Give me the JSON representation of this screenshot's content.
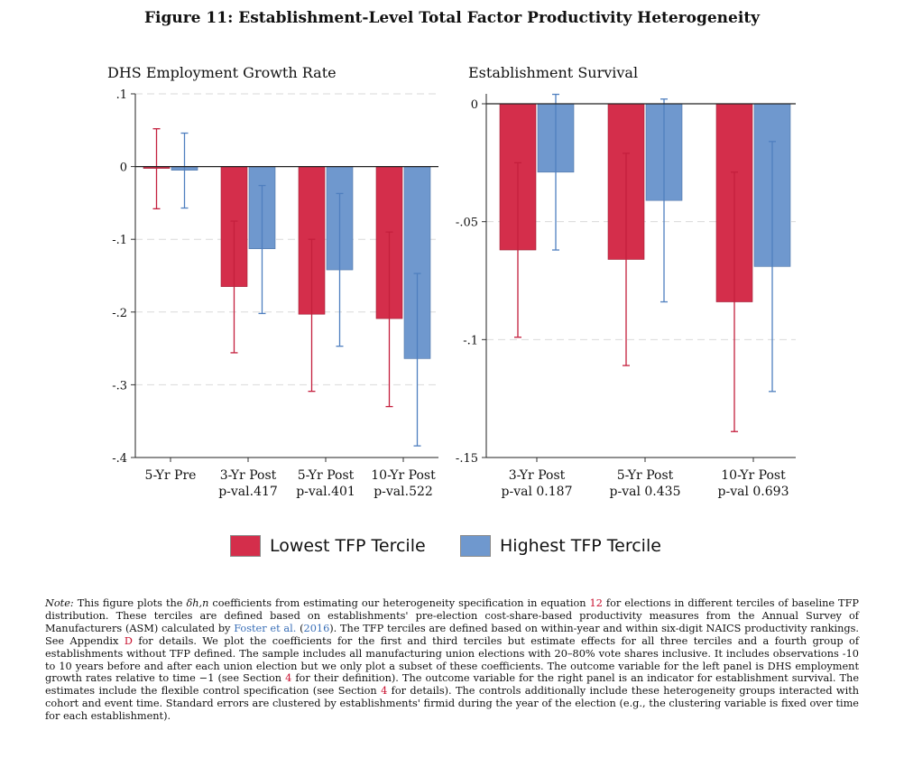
{
  "figure_title": "Figure 11: Establishment-Level Total Factor Productivity Heterogeneity",
  "colors": {
    "lowest": "#d42e4b",
    "highest": "#6f98ce",
    "lowest_err": "#c41f3d",
    "highest_err": "#4f7fbf",
    "grid": "#d9d9d9"
  },
  "legend": {
    "lowest": "Lowest TFP Tercile",
    "highest": "Highest TFP Tercile"
  },
  "chart_data": [
    {
      "type": "bar",
      "title": "DHS Employment Growth Rate",
      "categories": [
        "5-Yr Pre",
        "3-Yr Post",
        "5-Yr Post",
        "10-Yr Post"
      ],
      "sublabels": [
        "",
        "p-val.417",
        "p-val.401",
        "p-val.522"
      ],
      "yticks": [
        0.1,
        0,
        -0.1,
        -0.2,
        -0.3,
        -0.4
      ],
      "ytick_labels": [
        ".1",
        "0",
        "-.1",
        "-.2",
        "-.3",
        "-.4"
      ],
      "ylim": [
        -0.4,
        0.1
      ],
      "grid": true,
      "series": [
        {
          "name": "Lowest TFP Tercile",
          "values": [
            -0.002,
            -0.165,
            -0.203,
            -0.209
          ],
          "ci_low": [
            -0.058,
            -0.256,
            -0.309,
            -0.33
          ],
          "ci_high": [
            0.052,
            -0.075,
            -0.1,
            -0.09
          ]
        },
        {
          "name": "Highest TFP Tercile",
          "values": [
            -0.005,
            -0.113,
            -0.142,
            -0.264
          ],
          "ci_low": [
            -0.057,
            -0.202,
            -0.247,
            -0.384
          ],
          "ci_high": [
            0.046,
            -0.026,
            -0.037,
            -0.147
          ]
        }
      ]
    },
    {
      "type": "bar",
      "title": "Establishment Survival",
      "categories": [
        "3-Yr Post",
        "5-Yr Post",
        "10-Yr Post"
      ],
      "sublabels": [
        "p-val  0.187",
        "p-val  0.435",
        "p-val  0.693"
      ],
      "yticks": [
        0,
        -0.05,
        -0.1,
        -0.15
      ],
      "ytick_labels": [
        "0",
        "-.05",
        "-.1",
        "-.15"
      ],
      "ylim": [
        -0.15,
        0.004
      ],
      "grid": true,
      "series": [
        {
          "name": "Lowest TFP Tercile",
          "values": [
            -0.062,
            -0.066,
            -0.084
          ],
          "ci_low": [
            -0.099,
            -0.111,
            -0.139
          ],
          "ci_high": [
            -0.025,
            -0.021,
            -0.029
          ]
        },
        {
          "name": "Highest TFP Tercile",
          "values": [
            -0.029,
            -0.041,
            -0.069
          ],
          "ci_low": [
            -0.062,
            -0.084,
            -0.122
          ],
          "ci_high": [
            0.004,
            0.002,
            -0.016
          ]
        }
      ]
    }
  ],
  "note": {
    "label": "Note:",
    "p1": "This figure plots the",
    "symbol": "δh,n",
    "p2": "coefficients from estimating our heterogeneity specification in equation",
    "eq_ref": "12",
    "p3": "for elections in different terciles of baseline TFP distribution. These terciles are defined based on establishments' pre-election cost-share-based productivity measures from the Annual Survey of Manufacturers (ASM) calculated by",
    "cite1": "Foster et al.",
    "p4": "(",
    "cite_year": "2016",
    "p5": "). The TFP terciles are defined based on within-year and within six-digit NAICS productivity rankings. See Appendix",
    "app_ref": "D",
    "p6": "for details. We plot the coefficients for the first and third terciles but estimate effects for all three terciles and a fourth group of establishments without TFP defined. The sample includes all manufacturing union elections with 20–80% vote shares inclusive. It includes observations -10 to 10 years before and after each union election but we only plot a subset of these coefficients. The outcome variable for the left panel is DHS employment growth rates relative to time −1 (see Section",
    "sec_ref1": "4",
    "p7": "for their definition). The outcome variable for the right panel is an indicator for establishment survival. The estimates include the flexible control specification (see Section",
    "sec_ref2": "4",
    "p8": "for details). The controls additionally include these heterogeneity groups interacted with cohort and event time. Standard errors are clustered by establishments' firmid during the year of the election (e.g., the clustering variable is fixed over time for each establishment)."
  }
}
